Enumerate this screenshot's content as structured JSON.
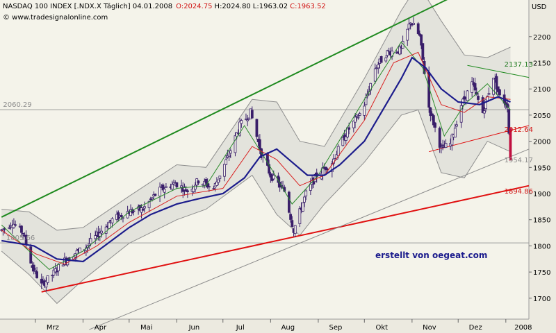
{
  "header": {
    "instrument": "NASDAQ 100 INDEX [.NDX.X Täglich] 04.01.2008",
    "open": "O:2024.75",
    "high": "H:2024.80",
    "low": "L:1963.02",
    "close": "C:1963.52",
    "copyright": "© www.tradesignalonline.com"
  },
  "colors": {
    "plot_bg": "#f4f3ea",
    "channel_upper": "#1f8a1f",
    "channel_lower": "#e01010",
    "band_fill": "#dcdcd6",
    "band_line": "#8e8e8e",
    "ma_slow": "#1c1c8c",
    "ma_mid": "#d92020",
    "ma_fast": "#2a8a2a",
    "candle": "#3a1f6a",
    "watermark": "#1a1a8c"
  },
  "chart_data": {
    "type": "candlestick",
    "title": "NASDAQ 100 INDEX [.NDX.X Täglich] 04.01.2008",
    "ylabel": "USD",
    "ylim": [
      1660,
      2270
    ],
    "yticks": [
      1700,
      1750,
      1800,
      1850,
      1900,
      1950,
      2000,
      2050,
      2100,
      2150,
      2200
    ],
    "xlim": [
      "2007-02-06",
      "2008-01-16"
    ],
    "x_ticks": [
      {
        "date": "2007-03-01",
        "label": "Mrz"
      },
      {
        "date": "2007-04-01",
        "label": "Apr"
      },
      {
        "date": "2007-05-01",
        "label": "Mai"
      },
      {
        "date": "2007-06-01",
        "label": "Jun"
      },
      {
        "date": "2007-07-01",
        "label": "Jul"
      },
      {
        "date": "2007-08-01",
        "label": "Aug"
      },
      {
        "date": "2007-09-01",
        "label": "Sep"
      },
      {
        "date": "2007-10-01",
        "label": "Okt"
      },
      {
        "date": "2007-11-01",
        "label": "Nov"
      },
      {
        "date": "2007-12-01",
        "label": "Dez"
      },
      {
        "date": "2008-01-01",
        "label": "2008"
      }
    ],
    "close_path": [
      [
        "2007-02-07",
        1830
      ],
      [
        "2007-02-14",
        1845
      ],
      [
        "2007-02-21",
        1825
      ],
      [
        "2007-02-27",
        1760
      ],
      [
        "2007-03-05",
        1725
      ],
      [
        "2007-03-12",
        1745
      ],
      [
        "2007-03-19",
        1770
      ],
      [
        "2007-03-26",
        1785
      ],
      [
        "2007-04-02",
        1795
      ],
      [
        "2007-04-10",
        1820
      ],
      [
        "2007-04-20",
        1850
      ],
      [
        "2007-04-30",
        1865
      ],
      [
        "2007-05-10",
        1870
      ],
      [
        "2007-05-20",
        1905
      ],
      [
        "2007-05-31",
        1920
      ],
      [
        "2007-06-08",
        1905
      ],
      [
        "2007-06-15",
        1925
      ],
      [
        "2007-06-25",
        1910
      ],
      [
        "2007-07-05",
        1975
      ],
      [
        "2007-07-12",
        2030
      ],
      [
        "2007-07-19",
        2055
      ],
      [
        "2007-07-26",
        1975
      ],
      [
        "2007-08-01",
        1935
      ],
      [
        "2007-08-10",
        1905
      ],
      [
        "2007-08-16",
        1830
      ],
      [
        "2007-08-24",
        1900
      ],
      [
        "2007-08-31",
        1935
      ],
      [
        "2007-09-10",
        1960
      ],
      [
        "2007-09-20",
        2020
      ],
      [
        "2007-09-30",
        2060
      ],
      [
        "2007-10-08",
        2140
      ],
      [
        "2007-10-16",
        2170
      ],
      [
        "2007-10-25",
        2175
      ],
      [
        "2007-10-31",
        2230
      ],
      [
        "2007-11-06",
        2200
      ],
      [
        "2007-11-12",
        2065
      ],
      [
        "2007-11-20",
        1985
      ],
      [
        "2007-11-26",
        1995
      ],
      [
        "2007-12-03",
        2070
      ],
      [
        "2007-12-10",
        2110
      ],
      [
        "2007-12-17",
        2055
      ],
      [
        "2007-12-24",
        2125
      ],
      [
        "2007-12-28",
        2085
      ],
      [
        "2008-01-02",
        2070
      ],
      [
        "2008-01-04",
        1963.52
      ]
    ],
    "ma_slow": [
      [
        "2007-02-07",
        1810
      ],
      [
        "2007-02-28",
        1800
      ],
      [
        "2007-03-15",
        1775
      ],
      [
        "2007-04-01",
        1770
      ],
      [
        "2007-04-15",
        1800
      ],
      [
        "2007-05-01",
        1835
      ],
      [
        "2007-05-15",
        1860
      ],
      [
        "2007-06-01",
        1880
      ],
      [
        "2007-06-15",
        1890
      ],
      [
        "2007-07-01",
        1900
      ],
      [
        "2007-07-15",
        1930
      ],
      [
        "2007-07-25",
        1970
      ],
      [
        "2007-08-05",
        1985
      ],
      [
        "2007-08-15",
        1960
      ],
      [
        "2007-08-25",
        1935
      ],
      [
        "2007-09-05",
        1935
      ],
      [
        "2007-09-15",
        1955
      ],
      [
        "2007-10-01",
        2000
      ],
      [
        "2007-10-15",
        2070
      ],
      [
        "2007-10-25",
        2120
      ],
      [
        "2007-11-01",
        2160
      ],
      [
        "2007-11-10",
        2140
      ],
      [
        "2007-11-20",
        2100
      ],
      [
        "2007-12-01",
        2075
      ],
      [
        "2007-12-15",
        2070
      ],
      [
        "2007-12-27",
        2085
      ],
      [
        "2008-01-04",
        2075
      ]
    ],
    "ma_mid": [
      [
        "2007-02-07",
        1830
      ],
      [
        "2007-03-01",
        1785
      ],
      [
        "2007-03-20",
        1765
      ],
      [
        "2007-04-10",
        1800
      ],
      [
        "2007-05-01",
        1845
      ],
      [
        "2007-06-01",
        1895
      ],
      [
        "2007-07-01",
        1910
      ],
      [
        "2007-07-20",
        1990
      ],
      [
        "2007-08-05",
        1965
      ],
      [
        "2007-08-20",
        1915
      ],
      [
        "2007-09-05",
        1935
      ],
      [
        "2007-10-01",
        2040
      ],
      [
        "2007-10-20",
        2150
      ],
      [
        "2007-11-05",
        2170
      ],
      [
        "2007-11-20",
        2070
      ],
      [
        "2007-12-05",
        2055
      ],
      [
        "2007-12-20",
        2085
      ],
      [
        "2008-01-04",
        2080
      ]
    ],
    "ma_fast": [
      [
        "2007-02-07",
        1840
      ],
      [
        "2007-02-25",
        1790
      ],
      [
        "2007-03-10",
        1755
      ],
      [
        "2007-04-01",
        1790
      ],
      [
        "2007-05-01",
        1865
      ],
      [
        "2007-06-01",
        1910
      ],
      [
        "2007-06-20",
        1915
      ],
      [
        "2007-07-15",
        2030
      ],
      [
        "2007-08-01",
        1950
      ],
      [
        "2007-08-15",
        1880
      ],
      [
        "2007-09-01",
        1935
      ],
      [
        "2007-10-01",
        2080
      ],
      [
        "2007-10-25",
        2190
      ],
      [
        "2007-11-08",
        2140
      ],
      [
        "2007-11-22",
        2010
      ],
      [
        "2007-12-05",
        2070
      ],
      [
        "2007-12-20",
        2110
      ],
      [
        "2008-01-04",
        2060
      ]
    ],
    "band_upper": [
      [
        "2007-02-07",
        1870
      ],
      [
        "2007-02-25",
        1865
      ],
      [
        "2007-03-15",
        1830
      ],
      [
        "2007-04-01",
        1835
      ],
      [
        "2007-05-01",
        1895
      ],
      [
        "2007-06-01",
        1955
      ],
      [
        "2007-06-20",
        1950
      ],
      [
        "2007-07-20",
        2080
      ],
      [
        "2007-08-05",
        2075
      ],
      [
        "2007-08-20",
        2000
      ],
      [
        "2007-09-05",
        1990
      ],
      [
        "2007-10-01",
        2120
      ],
      [
        "2007-10-25",
        2250
      ],
      [
        "2007-11-05",
        2300
      ],
      [
        "2007-11-20",
        2230
      ],
      [
        "2007-12-05",
        2165
      ],
      [
        "2007-12-20",
        2160
      ],
      [
        "2008-01-04",
        2180
      ]
    ],
    "band_lower": [
      [
        "2007-02-07",
        1790
      ],
      [
        "2007-02-25",
        1745
      ],
      [
        "2007-03-15",
        1690
      ],
      [
        "2007-04-01",
        1735
      ],
      [
        "2007-05-01",
        1805
      ],
      [
        "2007-06-01",
        1850
      ],
      [
        "2007-06-20",
        1870
      ],
      [
        "2007-07-20",
        1935
      ],
      [
        "2007-08-05",
        1860
      ],
      [
        "2007-08-20",
        1820
      ],
      [
        "2007-09-05",
        1880
      ],
      [
        "2007-10-01",
        1960
      ],
      [
        "2007-10-25",
        2050
      ],
      [
        "2007-11-05",
        2060
      ],
      [
        "2007-11-20",
        1940
      ],
      [
        "2007-12-05",
        1930
      ],
      [
        "2007-12-20",
        2000
      ],
      [
        "2008-01-04",
        1980
      ]
    ],
    "trendlines": [
      {
        "name": "upper-channel",
        "color": "channel_upper",
        "width": 2,
        "from": [
          "2007-02-07",
          1855
        ],
        "to": [
          "2007-12-14",
          2300
        ]
      },
      {
        "name": "lower-channel",
        "color": "channel_lower",
        "width": 2,
        "from": [
          "2007-03-05",
          1712
        ],
        "to": [
          "2008-01-16",
          1915
        ]
      },
      {
        "name": "support-line",
        "color": "#8c8c8c",
        "width": 1,
        "from": [
          "2007-04-05",
          1640
        ],
        "to": [
          "2008-01-16",
          1985
        ]
      },
      {
        "name": "resistance-line",
        "color": "channel_upper",
        "width": 1,
        "from": [
          "2007-12-07",
          2145
        ],
        "to": [
          "2008-01-16",
          2122
        ]
      },
      {
        "name": "triangle-support",
        "color": "channel_lower",
        "width": 1,
        "from": [
          "2007-11-12",
          1980
        ],
        "to": [
          "2008-01-16",
          2030
        ]
      }
    ],
    "horizontal_lines": [
      {
        "name": "level-2060",
        "value": 2060.29
      },
      {
        "name": "level-1805",
        "value": 1805.66
      }
    ],
    "level_labels": [
      {
        "name": "label-2060",
        "text": "2060.29",
        "date": "2007-02-08",
        "value": 2060.29,
        "color": "#8c8c8c"
      },
      {
        "name": "label-1805",
        "text": "1805.66",
        "date": "2007-02-10",
        "value": 1805.66,
        "color": "#8c8c8c"
      },
      {
        "name": "label-2137",
        "text": "2137.13",
        "date": "2007-12-31",
        "value": 2137.13,
        "color": "#1f7a1f"
      },
      {
        "name": "label-2012",
        "text": "2012.64",
        "date": "2007-12-31",
        "value": 2012.64,
        "color": "#d01010"
      },
      {
        "name": "label-1954",
        "text": "1954.17",
        "date": "2007-12-31",
        "value": 1954.17,
        "color": "#8c8c8c"
      },
      {
        "name": "label-1894",
        "text": "1894.86",
        "date": "2007-12-31",
        "value": 1894.86,
        "color": "#d01010"
      }
    ],
    "watermark": "erstellt von oegeat.com",
    "last_candle": {
      "date": "2008-01-04",
      "open": 2024.75,
      "high": 2024.8,
      "low": 1963.02,
      "close": 1963.52
    }
  }
}
